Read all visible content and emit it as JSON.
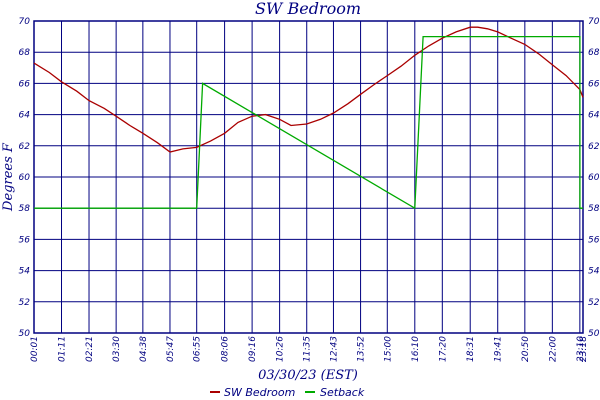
{
  "chart_data": {
    "type": "line",
    "title": "SW Bedroom",
    "xlabel": "03/30/23 (EST)",
    "ylabel": "Degrees F",
    "ylim": [
      50,
      70
    ],
    "y_ticks": [
      50,
      52,
      54,
      56,
      58,
      60,
      62,
      64,
      66,
      68,
      70
    ],
    "x_tick_labels": [
      "00:01",
      "01:11",
      "02:21",
      "03:30",
      "04:38",
      "05:47",
      "06:55",
      "08:06",
      "09:16",
      "10:26",
      "11:35",
      "12:43",
      "13:52",
      "15:00",
      "16:10",
      "17:20",
      "18:31",
      "19:41",
      "20:50",
      "22:00",
      "23:10",
      "23:18"
    ],
    "grid": true,
    "legend_placement": "bottom-center",
    "series": [
      {
        "name": "SW Bedroom",
        "color": "#aa0000",
        "x": [
          "00:01",
          "00:40",
          "01:11",
          "01:50",
          "02:21",
          "03:00",
          "03:30",
          "04:05",
          "04:38",
          "05:15",
          "05:47",
          "06:20",
          "06:55",
          "07:30",
          "08:06",
          "08:40",
          "09:16",
          "09:50",
          "10:26",
          "10:55",
          "11:35",
          "12:10",
          "12:43",
          "13:20",
          "13:52",
          "14:25",
          "15:00",
          "15:35",
          "16:10",
          "16:45",
          "17:20",
          "17:55",
          "18:31",
          "18:50",
          "19:15",
          "19:41",
          "20:15",
          "20:50",
          "21:25",
          "22:00",
          "22:35",
          "23:10",
          "23:18"
        ],
        "values": [
          67.3,
          66.7,
          66.1,
          65.5,
          64.9,
          64.4,
          63.9,
          63.3,
          62.8,
          62.2,
          61.6,
          61.8,
          61.9,
          62.3,
          62.8,
          63.5,
          63.9,
          64.0,
          63.7,
          63.3,
          63.4,
          63.7,
          64.1,
          64.7,
          65.3,
          65.9,
          66.5,
          67.1,
          67.8,
          68.4,
          68.9,
          69.3,
          69.6,
          69.6,
          69.5,
          69.3,
          68.9,
          68.5,
          67.9,
          67.2,
          66.5,
          65.6,
          65.1
        ]
      },
      {
        "name": "Setback",
        "color": "#00aa00",
        "x": [
          "00:01",
          "05:47",
          "05:47",
          "06:55",
          "06:55",
          "07:10",
          "07:10",
          "16:10",
          "16:10",
          "16:31",
          "16:31",
          "23:10",
          "23:10",
          "23:18"
        ],
        "values": [
          58,
          58,
          58,
          58,
          58,
          66,
          66,
          58,
          58,
          69,
          69,
          69,
          58,
          58
        ]
      }
    ]
  }
}
